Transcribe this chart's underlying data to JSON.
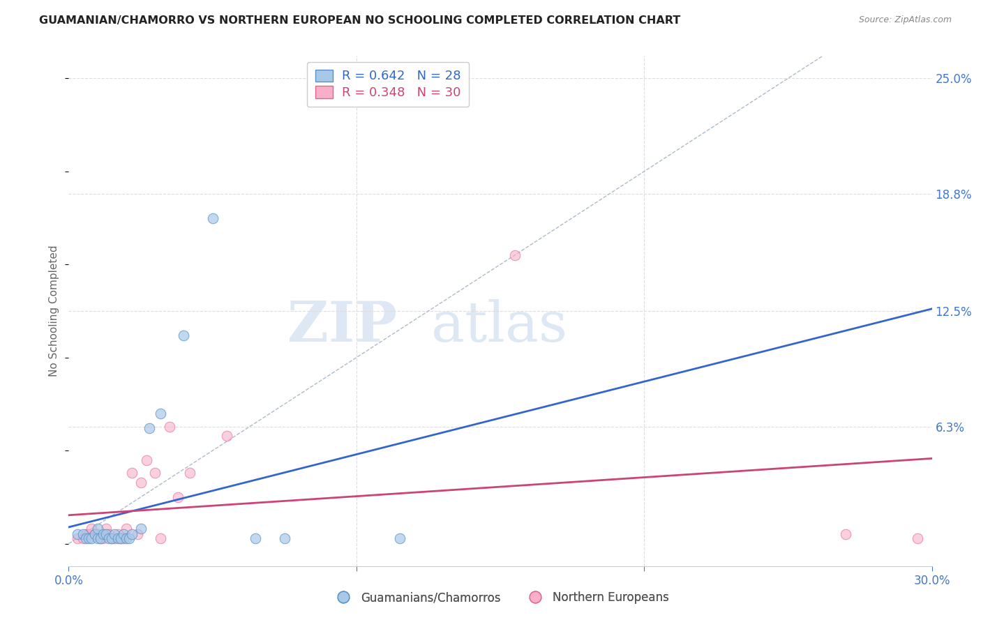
{
  "title": "GUAMANIAN/CHAMORRO VS NORTHERN EUROPEAN NO SCHOOLING COMPLETED CORRELATION CHART",
  "source": "Source: ZipAtlas.com",
  "ylabel": "No Schooling Completed",
  "ytick_labels": [
    "25.0%",
    "18.8%",
    "12.5%",
    "6.3%"
  ],
  "ytick_values": [
    0.25,
    0.188,
    0.125,
    0.063
  ],
  "xlim": [
    0.0,
    0.3
  ],
  "ylim": [
    -0.012,
    0.262
  ],
  "legend_label1": "Guamanians/Chamorros",
  "legend_label2": "Northern Europeans",
  "R_blue": 0.642,
  "N_blue": 28,
  "R_pink": 0.348,
  "N_pink": 30,
  "blue_color": "#a8c8e8",
  "blue_edge": "#5590c8",
  "pink_color": "#f8b0c8",
  "pink_edge": "#e86090",
  "blue_line_color": "#3366cc",
  "pink_line_color": "#cc4477",
  "diag_color": "#aabbcc",
  "title_color": "#222222",
  "source_color": "#888888",
  "axis_tick_color": "#4477cc",
  "ylabel_color": "#666666",
  "grid_color": "#dddddd",
  "background_color": "#ffffff",
  "watermark_color": "#dde8f4",
  "blue_scatter_x": [
    0.003,
    0.005,
    0.006,
    0.007,
    0.008,
    0.009,
    0.01,
    0.01,
    0.011,
    0.012,
    0.013,
    0.014,
    0.015,
    0.016,
    0.017,
    0.018,
    0.019,
    0.02,
    0.021,
    0.022,
    0.025,
    0.028,
    0.032,
    0.04,
    0.05,
    0.065,
    0.075,
    0.115
  ],
  "blue_scatter_y": [
    0.005,
    0.005,
    0.003,
    0.003,
    0.003,
    0.005,
    0.003,
    0.008,
    0.003,
    0.005,
    0.005,
    0.003,
    0.003,
    0.005,
    0.003,
    0.003,
    0.005,
    0.003,
    0.003,
    0.005,
    0.008,
    0.062,
    0.07,
    0.112,
    0.175,
    0.003,
    0.003,
    0.003
  ],
  "pink_scatter_x": [
    0.003,
    0.005,
    0.006,
    0.007,
    0.008,
    0.009,
    0.01,
    0.011,
    0.012,
    0.013,
    0.014,
    0.015,
    0.016,
    0.017,
    0.018,
    0.019,
    0.02,
    0.022,
    0.024,
    0.025,
    0.027,
    0.03,
    0.032,
    0.035,
    0.038,
    0.042,
    0.055,
    0.155,
    0.27,
    0.295
  ],
  "pink_scatter_y": [
    0.003,
    0.003,
    0.005,
    0.005,
    0.008,
    0.005,
    0.005,
    0.003,
    0.003,
    0.008,
    0.005,
    0.003,
    0.003,
    0.005,
    0.003,
    0.003,
    0.008,
    0.038,
    0.005,
    0.033,
    0.045,
    0.038,
    0.003,
    0.063,
    0.025,
    0.038,
    0.058,
    0.155,
    0.005,
    0.003
  ]
}
